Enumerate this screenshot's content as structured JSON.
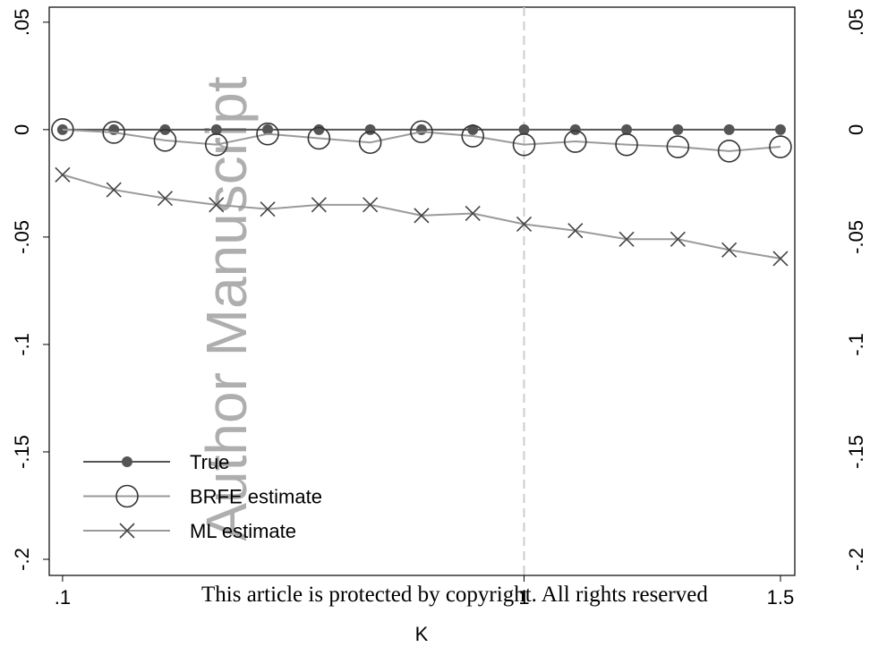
{
  "chart_data": [
    {
      "type": "line",
      "x_label": "K",
      "x": [
        0.1,
        0.2,
        0.3,
        0.4,
        0.5,
        0.6,
        0.7,
        0.8,
        0.9,
        1.0,
        1.1,
        1.2,
        1.3,
        1.4,
        1.5
      ],
      "series": [
        {
          "name": "True",
          "color": "#555555",
          "marker": "dot",
          "values": [
            0,
            0,
            0,
            0,
            0,
            0,
            0,
            0,
            0,
            0,
            0,
            0,
            0,
            0,
            0
          ]
        },
        {
          "name": "BRFE estimate",
          "color": "#9a9a9a",
          "marker": "circle",
          "values": [
            0,
            -0.0013,
            -0.005,
            -0.007,
            -0.002,
            -0.004,
            -0.006,
            -0.001,
            -0.003,
            -0.007,
            -0.0055,
            -0.007,
            -0.008,
            -0.01,
            -0.008
          ]
        },
        {
          "name": "ML estimate",
          "color": "#9a9a9a",
          "marker": "cross",
          "values": [
            -0.021,
            -0.028,
            -0.032,
            -0.035,
            -0.037,
            -0.035,
            -0.035,
            -0.04,
            -0.039,
            -0.044,
            -0.047,
            -0.051,
            -0.051,
            -0.056,
            -0.06
          ]
        }
      ],
      "xlim": [
        0.074,
        1.528
      ],
      "xticks": [
        {
          "value": 0.1,
          "label": ".1"
        },
        1,
        1.5
      ],
      "ylim": [
        -0.2075,
        0.057
      ],
      "yticks": [
        {
          "value": 0.05,
          "label": ".05"
        },
        0,
        {
          "value": -0.05,
          "label": "-.05"
        },
        {
          "value": -0.1,
          "label": "-.1"
        },
        {
          "value": -0.15,
          "label": "-.15"
        },
        {
          "value": -0.2,
          "label": "-.2"
        }
      ],
      "vline": 1,
      "legend": "lower left"
    },
    {
      "type": "line",
      "ylim": [
        -0.2075,
        0.057
      ],
      "yticks": [
        {
          "value": 0.05,
          "label": ".05"
        },
        0,
        {
          "value": -0.05,
          "label": "-.05"
        },
        {
          "value": -0.1,
          "label": "-.1"
        },
        {
          "value": -0.15,
          "label": "-.15"
        },
        {
          "value": -0.2,
          "label": "-.2"
        }
      ]
    }
  ],
  "watermark": "Author Manuscript",
  "footer": "This article is protected by copyright. All rights reserved"
}
